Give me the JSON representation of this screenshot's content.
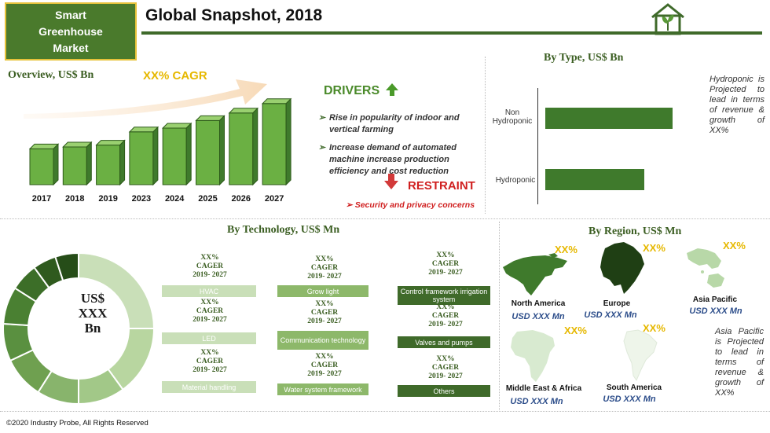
{
  "header": {
    "badge_lines": [
      "Smart",
      "Greenhouse",
      "Market"
    ],
    "title": "Global Snapshot, 2018",
    "icon": "greenhouse-icon"
  },
  "overview": {
    "heading": "Overview, US$ Bn",
    "cagr": "XX% CAGR",
    "years": [
      "2017",
      "2018",
      "2019",
      "2023",
      "2024",
      "2025",
      "2026",
      "2027"
    ],
    "relative_heights": [
      0.38,
      0.4,
      0.42,
      0.56,
      0.6,
      0.68,
      0.76,
      0.86
    ]
  },
  "drivers": {
    "heading": "DRIVERS",
    "items": [
      "Rise in popularity of indoor and vertical farming",
      "Increase demand of automated machine increase production efficiency and cost reduction"
    ]
  },
  "restraint": {
    "heading": "RESTRAINT",
    "items": [
      "Security and privacy concerns"
    ]
  },
  "by_type": {
    "heading": "By Type, US$ Bn",
    "categories": [
      "Non Hydroponic",
      "Hydroponic"
    ],
    "relative_values": [
      1.0,
      0.78
    ],
    "note": "Hydroponic is Projected to lead in terms of revenue & growth of XX%"
  },
  "by_technology": {
    "heading": "By Technology, US$ Mn",
    "center_lines": [
      "US$",
      "XXX",
      "Bn"
    ],
    "cagr_lines": [
      "XX%",
      "CAGER",
      "2019- 2027"
    ],
    "segments": [
      {
        "label": "HVAC",
        "shade": "lg"
      },
      {
        "label": "LED",
        "shade": "lg"
      },
      {
        "label": "Material handling",
        "shade": "lg"
      },
      {
        "label": "Grow light",
        "shade": "md"
      },
      {
        "label": "Communication technology",
        "shade": "md"
      },
      {
        "label": "Water system framework",
        "shade": "md"
      },
      {
        "label": "Control framework irrigation system",
        "shade": "dk"
      },
      {
        "label": "Valves and pumps",
        "shade": "dk"
      },
      {
        "label": "Others",
        "shade": "dk"
      }
    ]
  },
  "by_region": {
    "heading": "By Region, US$ Mn",
    "cagr_value": "XX%",
    "regions": [
      {
        "name": "North America",
        "value": "USD XXX Mn"
      },
      {
        "name": "Europe",
        "value": "USD XXX Mn"
      },
      {
        "name": "Asia Pacific",
        "value": "USD XXX Mn"
      },
      {
        "name": "Middle East & Africa",
        "value": "USD XXX Mn"
      },
      {
        "name": "South America",
        "value": "USD XXX Mn"
      }
    ],
    "note": "Asia Pacific is Projected to lead in terms of revenue & growth of XX%"
  },
  "footer": {
    "copyright": "©2020 Industry Probe, All Rights Reserved"
  },
  "colors": {
    "dark_green": "#3f6a2a",
    "mid_green": "#8db86a",
    "light_green": "#c9dfb8",
    "accent_yellow": "#e6b800",
    "alert_red": "#d02020"
  }
}
